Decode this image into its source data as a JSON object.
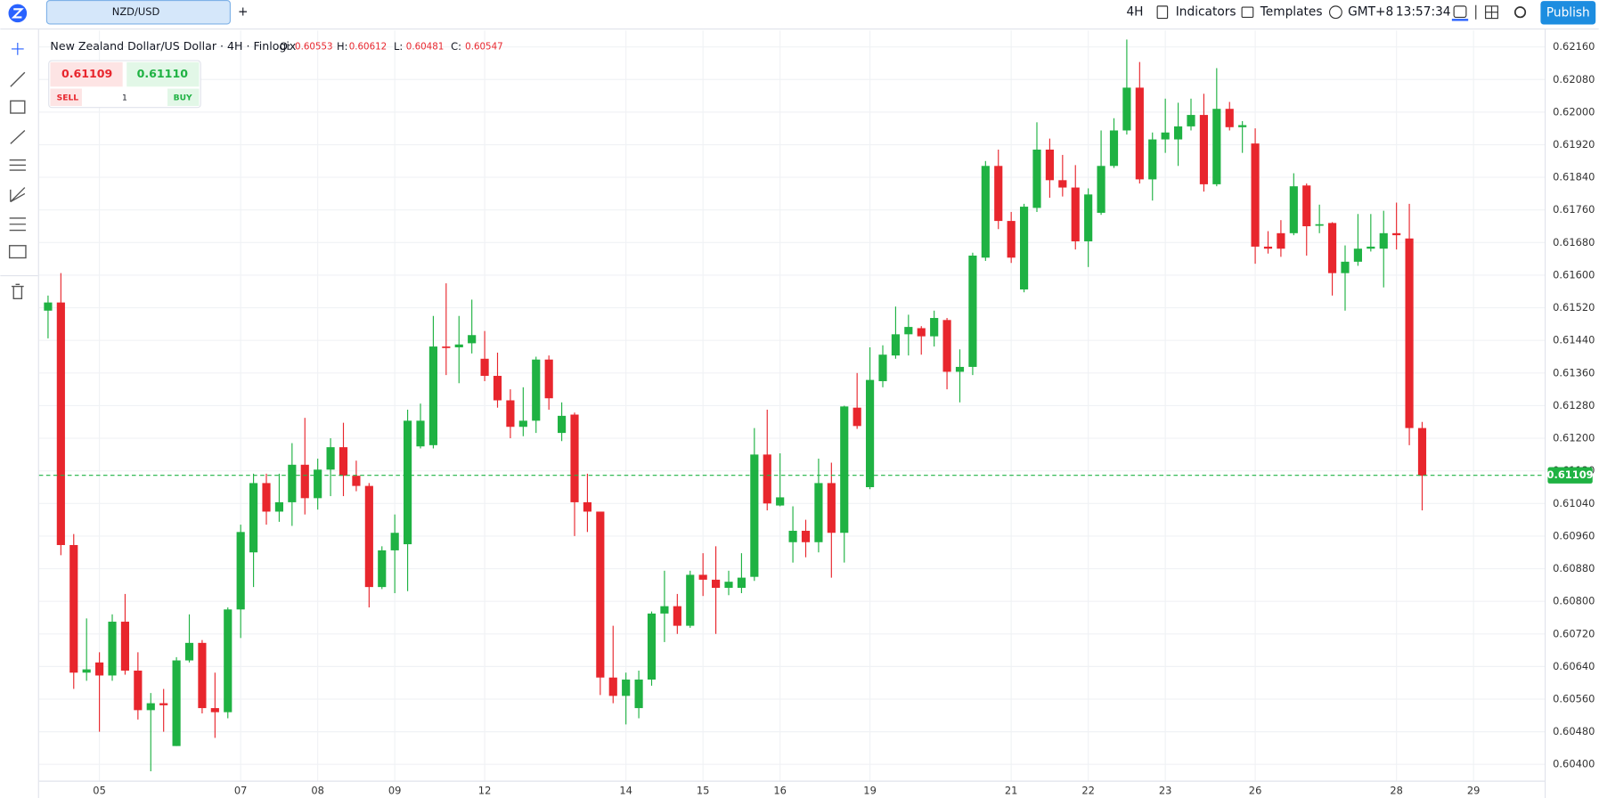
{
  "toolbar": {
    "tab": "NZD/USD",
    "add_tab": "+",
    "interval": "4H",
    "indicators": "Indicators",
    "templates": "Templates",
    "timezone": "GMT+8",
    "time": "13:57:34",
    "publish": "Publish"
  },
  "legend": {
    "symbol": "New Zealand Dollar/US Dollar · 4H · Finlogix",
    "o_label": "O:",
    "o": "0.60553",
    "h_label": "H:",
    "h": "0.60612",
    "l_label": "L:",
    "l": "0.60481",
    "c_label": "C:",
    "c": "0.60547"
  },
  "trade_widget": {
    "sell_price": "0.61109",
    "buy_price": "0.61110",
    "sell": "SELL",
    "quantity": "1",
    "buy": "BUY"
  },
  "chart_data": {
    "type": "candlestick",
    "up_color": "#1fb243",
    "down_color": "#e8262d",
    "grid": true,
    "open": [
      0.61513,
      0.61533,
      0.60938,
      0.60625,
      0.6065,
      0.60618,
      0.6075,
      0.6063,
      0.60533,
      0.6055,
      0.60445,
      0.60655,
      0.60698,
      0.60538,
      0.60528,
      0.6078,
      0.6092,
      0.6109,
      0.6102,
      0.61043,
      0.61135,
      0.61053,
      0.61123,
      0.61178,
      0.61108,
      0.61083,
      0.60835,
      0.60925,
      0.6094,
      0.6118,
      0.61183,
      0.61425,
      0.61423,
      0.61433,
      0.61395,
      0.61353,
      0.61293,
      0.61228,
      0.61243,
      0.61393,
      0.61213,
      0.61258,
      0.61043,
      0.6102,
      0.60613,
      0.60568,
      0.60538,
      0.60608,
      0.6077,
      0.60788,
      0.6074,
      0.60865,
      0.60853,
      0.60833,
      0.60833,
      0.6086,
      0.6116,
      0.61035,
      0.60945,
      0.60973,
      0.60945,
      0.6109,
      0.60968,
      0.61275,
      0.6108,
      0.6134,
      0.61403,
      0.61455,
      0.6147,
      0.6145,
      0.6149,
      0.61363,
      0.61375,
      0.61643,
      0.61868,
      0.61733,
      0.61565,
      0.61765,
      0.61908,
      0.61833,
      0.61815,
      0.61683,
      0.61753,
      0.61868,
      0.61955,
      0.6206,
      0.61835,
      0.61933,
      0.61933,
      0.61965,
      0.61993,
      0.61823,
      0.62008,
      0.61963,
      0.61923,
      0.6167,
      0.61703,
      0.61703,
      0.6182,
      0.61723,
      0.61728,
      0.61605,
      0.61633,
      0.61665,
      0.61665,
      0.61703,
      0.6169,
      0.61225
    ],
    "high": [
      0.6155,
      0.61605,
      0.60965,
      0.60758,
      0.60675,
      0.60768,
      0.60818,
      0.60675,
      0.60575,
      0.60585,
      0.60663,
      0.60768,
      0.60705,
      0.60625,
      0.60785,
      0.60988,
      0.61113,
      0.61113,
      0.61113,
      0.61188,
      0.6125,
      0.6115,
      0.612,
      0.61238,
      0.61145,
      0.6109,
      0.60935,
      0.61013,
      0.6127,
      0.61285,
      0.615,
      0.6158,
      0.615,
      0.6154,
      0.61463,
      0.6141,
      0.6132,
      0.61325,
      0.614,
      0.61403,
      0.61288,
      0.61263,
      0.61113,
      0.6102,
      0.6074,
      0.60625,
      0.6063,
      0.60775,
      0.60875,
      0.60818,
      0.60875,
      0.60918,
      0.60935,
      0.60875,
      0.60918,
      0.61225,
      0.6127,
      0.61163,
      0.61033,
      0.61,
      0.6115,
      0.6114,
      0.6128,
      0.6136,
      0.61423,
      0.61428,
      0.61523,
      0.61503,
      0.61475,
      0.61513,
      0.61495,
      0.61418,
      0.61655,
      0.6188,
      0.61908,
      0.61755,
      0.61775,
      0.61975,
      0.61935,
      0.61895,
      0.6187,
      0.61813,
      0.61955,
      0.61985,
      0.62178,
      0.62123,
      0.6195,
      0.62033,
      0.62023,
      0.62033,
      0.62045,
      0.62108,
      0.62025,
      0.61978,
      0.6196,
      0.61708,
      0.61735,
      0.6185,
      0.61825,
      0.61773,
      0.6173,
      0.61673,
      0.6175,
      0.6175,
      0.61758,
      0.61778,
      0.61775,
      0.6124
    ],
    "low": [
      0.61445,
      0.60913,
      0.60585,
      0.60605,
      0.6048,
      0.60605,
      0.6062,
      0.6051,
      0.60383,
      0.6048,
      0.60445,
      0.6065,
      0.60525,
      0.60465,
      0.60513,
      0.6071,
      0.60835,
      0.60988,
      0.60995,
      0.60985,
      0.61013,
      0.61025,
      0.61058,
      0.61058,
      0.6107,
      0.60785,
      0.6083,
      0.6082,
      0.60825,
      0.61175,
      0.61175,
      0.61355,
      0.61335,
      0.61408,
      0.6134,
      0.61275,
      0.612,
      0.61205,
      0.61213,
      0.6127,
      0.61193,
      0.6096,
      0.6097,
      0.6057,
      0.6055,
      0.60498,
      0.60513,
      0.60593,
      0.607,
      0.6072,
      0.60735,
      0.60813,
      0.6072,
      0.60815,
      0.6082,
      0.6085,
      0.61023,
      0.61033,
      0.60895,
      0.60908,
      0.6092,
      0.60858,
      0.60895,
      0.61223,
      0.61075,
      0.61325,
      0.61395,
      0.61403,
      0.61405,
      0.61425,
      0.6132,
      0.61288,
      0.61355,
      0.61635,
      0.61713,
      0.6163,
      0.61558,
      0.61755,
      0.6179,
      0.61793,
      0.61663,
      0.6162,
      0.61748,
      0.61863,
      0.61945,
      0.61825,
      0.61783,
      0.619,
      0.61868,
      0.61955,
      0.61805,
      0.61818,
      0.61955,
      0.619,
      0.61628,
      0.61653,
      0.61645,
      0.61698,
      0.61648,
      0.61703,
      0.6155,
      0.61513,
      0.61623,
      0.61658,
      0.6157,
      0.61663,
      0.61183,
      0.61023
    ],
    "close": [
      0.61533,
      0.60938,
      0.60625,
      0.60633,
      0.60618,
      0.6075,
      0.6063,
      0.60533,
      0.6055,
      0.60545,
      0.60655,
      0.60698,
      0.60538,
      0.60528,
      0.6078,
      0.6097,
      0.6109,
      0.6102,
      0.61043,
      0.61135,
      0.61053,
      0.61123,
      0.61178,
      0.61108,
      0.61083,
      0.60835,
      0.60925,
      0.60968,
      0.61243,
      0.61243,
      0.61425,
      0.61423,
      0.6143,
      0.61453,
      0.61353,
      0.61293,
      0.61228,
      0.61243,
      0.61393,
      0.61298,
      0.61255,
      0.61043,
      0.6102,
      0.60613,
      0.60568,
      0.60608,
      0.60608,
      0.6077,
      0.60788,
      0.6074,
      0.60865,
      0.60853,
      0.60833,
      0.60848,
      0.60858,
      0.6116,
      0.6104,
      0.61055,
      0.60973,
      0.60945,
      0.6109,
      0.60968,
      0.61278,
      0.6123,
      0.61343,
      0.61405,
      0.61455,
      0.61473,
      0.6145,
      0.61495,
      0.61363,
      0.61375,
      0.61648,
      0.61868,
      0.61733,
      0.61643,
      0.61768,
      0.61908,
      0.61833,
      0.61815,
      0.61683,
      0.61798,
      0.61868,
      0.61955,
      0.6206,
      0.61835,
      0.61933,
      0.6195,
      0.61965,
      0.61993,
      0.61823,
      0.62008,
      0.61963,
      0.61968,
      0.6167,
      0.61665,
      0.61665,
      0.61818,
      0.6172,
      0.61725,
      0.61605,
      0.61633,
      0.61665,
      0.6167,
      0.61703,
      0.61698,
      0.61225,
      0.61108
    ],
    "last_price": 0.61109,
    "last_price_color": "#1fb243",
    "xlim": [
      -0.7,
      116.3
    ],
    "xticks": [
      {
        "value": 4,
        "label": "05"
      },
      {
        "value": 15,
        "label": "07"
      },
      {
        "value": 21,
        "label": "08"
      },
      {
        "value": 27,
        "label": "09"
      },
      {
        "value": 34,
        "label": "12"
      },
      {
        "value": 45,
        "label": "14"
      },
      {
        "value": 51,
        "label": "15"
      },
      {
        "value": 57,
        "label": "16"
      },
      {
        "value": 64,
        "label": "19"
      },
      {
        "value": 75,
        "label": "21"
      },
      {
        "value": 81,
        "label": "22"
      },
      {
        "value": 87,
        "label": "23"
      },
      {
        "value": 94,
        "label": "26"
      },
      {
        "value": 105,
        "label": "28"
      },
      {
        "value": 111,
        "label": "29"
      }
    ],
    "ylim": [
      0.603625,
      0.622
    ],
    "yticks": [
      {
        "value": 0.6216,
        "label": "0.62160"
      },
      {
        "value": 0.6208,
        "label": "0.62080"
      },
      {
        "value": 0.62,
        "label": "0.62000"
      },
      {
        "value": 0.6192,
        "label": "0.61920"
      },
      {
        "value": 0.6184,
        "label": "0.61840"
      },
      {
        "value": 0.6176,
        "label": "0.61760"
      },
      {
        "value": 0.6168,
        "label": "0.61680"
      },
      {
        "value": 0.616,
        "label": "0.61600"
      },
      {
        "value": 0.6152,
        "label": "0.61520"
      },
      {
        "value": 0.6144,
        "label": "0.61440"
      },
      {
        "value": 0.6136,
        "label": "0.61360"
      },
      {
        "value": 0.6128,
        "label": "0.61280"
      },
      {
        "value": 0.612,
        "label": "0.61200"
      },
      {
        "value": 0.6112,
        "label": "0.61120"
      },
      {
        "value": 0.6104,
        "label": "0.61040"
      },
      {
        "value": 0.6096,
        "label": "0.60960"
      },
      {
        "value": 0.6088,
        "label": "0.60880"
      },
      {
        "value": 0.608,
        "label": "0.60800"
      },
      {
        "value": 0.6072,
        "label": "0.60720"
      },
      {
        "value": 0.6064,
        "label": "0.60640"
      },
      {
        "value": 0.6056,
        "label": "0.60560"
      },
      {
        "value": 0.6048,
        "label": "0.60480"
      },
      {
        "value": 0.604,
        "label": "0.60400"
      }
    ]
  }
}
